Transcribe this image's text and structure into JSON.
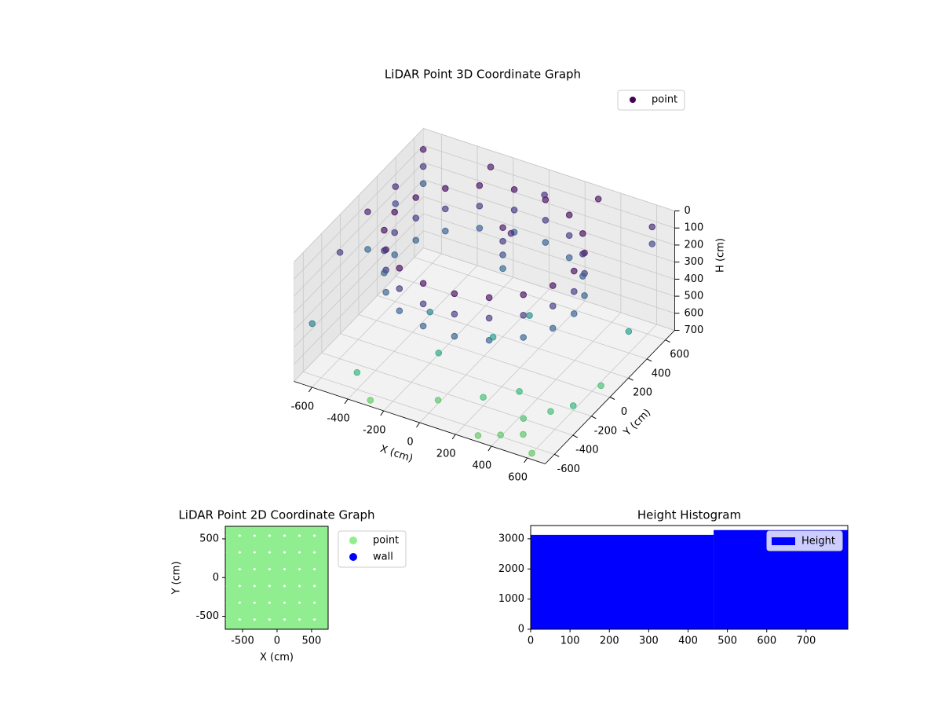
{
  "chart_data": [
    {
      "type": "scatter3d",
      "title": "LiDAR Point 3D Coordinate Graph",
      "xlabel": "X (cm)",
      "ylabel": "Y (cm)",
      "zlabel": "H (cm)",
      "xlim": [
        -700,
        700
      ],
      "ylim": [
        -700,
        700
      ],
      "zlim": [
        0,
        700
      ],
      "z_inverted": true,
      "xticks": [
        -600,
        -400,
        -200,
        0,
        200,
        400,
        600
      ],
      "yticks": [
        -600,
        -400,
        -200,
        0,
        200,
        400,
        600
      ],
      "zticks": [
        0,
        100,
        200,
        300,
        400,
        500,
        600,
        700
      ],
      "colormap": "viridis",
      "grid": true,
      "legend": "upper right",
      "series": [
        {
          "name": "point",
          "color": "#440154",
          "x": [
            500,
            470,
            383,
            250,
            87,
            -87,
            -250,
            -383,
            -470,
            -500,
            -470,
            -383,
            -250,
            -87,
            87,
            250,
            383,
            470,
            500,
            470,
            383,
            250,
            87,
            -87,
            -250,
            -383,
            -470,
            -500,
            -470,
            -383,
            -250,
            -87,
            87,
            250,
            383,
            470,
            500,
            470,
            383,
            250,
            87,
            -87,
            -250,
            -383,
            -470,
            -500,
            -470,
            -383,
            -250,
            -87,
            87,
            250,
            383,
            470,
            -650,
            -650,
            -650,
            -650,
            -650,
            -650,
            -650,
            -650,
            -650,
            -300,
            0,
            300,
            600,
            600,
            650,
            650,
            650,
            300,
            400,
            500,
            600,
            200,
            350,
            450,
            550,
            0,
            0,
            0,
            0,
            30,
            -200,
            100,
            -400,
            200,
            -100,
            0,
            -300
          ],
          "y": [
            0,
            171,
            321,
            433,
            492,
            492,
            433,
            321,
            171,
            0,
            -171,
            -321,
            -433,
            -492,
            -492,
            -433,
            -321,
            -171,
            0,
            171,
            321,
            433,
            492,
            492,
            433,
            321,
            171,
            0,
            -171,
            -321,
            -433,
            -492,
            -492,
            -433,
            -321,
            -171,
            0,
            171,
            321,
            433,
            492,
            492,
            433,
            321,
            171,
            0,
            -171,
            -321,
            -433,
            -492,
            -492,
            -433,
            -321,
            -171,
            600,
            600,
            600,
            300,
            300,
            0,
            0,
            -300,
            -600,
            650,
            650,
            650,
            650,
            650,
            300,
            0,
            -300,
            -650,
            -600,
            -550,
            -650,
            -400,
            -300,
            -450,
            -350,
            200,
            200,
            200,
            200,
            230,
            -200,
            -100,
            -600,
            100,
            -300,
            -500,
            -650
          ],
          "z": [
            30,
            30,
            30,
            30,
            30,
            30,
            30,
            30,
            30,
            30,
            30,
            30,
            30,
            30,
            30,
            30,
            30,
            30,
            150,
            150,
            150,
            150,
            150,
            150,
            150,
            150,
            150,
            150,
            150,
            150,
            150,
            150,
            150,
            150,
            150,
            150,
            280,
            280,
            280,
            280,
            280,
            280,
            280,
            280,
            280,
            280,
            280,
            280,
            280,
            280,
            280,
            280,
            280,
            280,
            50,
            150,
            250,
            100,
            200,
            80,
            300,
            150,
            400,
            60,
            120,
            40,
            200,
            100,
            500,
            650,
            600,
            700,
            690,
            680,
            700,
            650,
            620,
            660,
            640,
            60,
            140,
            220,
            300,
            100,
            400,
            500,
            600,
            450,
            550,
            680,
            700
          ]
        }
      ]
    },
    {
      "type": "scatter",
      "title": "LiDAR Point 2D Coordinate Graph",
      "xlabel": "X (cm)",
      "ylabel": "Y (cm)",
      "xlim": [
        -750,
        740
      ],
      "ylim": [
        -667,
        662
      ],
      "xticks": [
        -500,
        0,
        500
      ],
      "yticks": [
        -500,
        0,
        500
      ],
      "legend": "outside right",
      "series": [
        {
          "name": "point",
          "color": "#90ee90",
          "x": [
            -650,
            -433,
            -217,
            0,
            217,
            433,
            650,
            -650,
            -433,
            -217,
            0,
            217,
            433,
            650,
            -650,
            -433,
            -217,
            0,
            217,
            433,
            650,
            -650,
            -433,
            -217,
            0,
            217,
            433,
            650,
            -650,
            -433,
            -217,
            0,
            217,
            433,
            650,
            -650,
            -433,
            -217,
            0,
            217,
            433,
            650,
            -650,
            -433,
            -217,
            0,
            217,
            433,
            650
          ],
          "y": [
            -650,
            -650,
            -650,
            -650,
            -650,
            -650,
            -650,
            -433,
            -433,
            -433,
            -433,
            -433,
            -433,
            -433,
            -217,
            -217,
            -217,
            -217,
            -217,
            -217,
            -217,
            0,
            0,
            0,
            0,
            0,
            0,
            0,
            217,
            217,
            217,
            217,
            217,
            217,
            217,
            433,
            433,
            433,
            433,
            433,
            433,
            433,
            650,
            650,
            650,
            650,
            650,
            650,
            650
          ]
        },
        {
          "name": "wall",
          "color": "#0000ff",
          "x": [],
          "y": []
        }
      ]
    },
    {
      "type": "histogram",
      "title": "Height Histogram",
      "name": "Height",
      "color": "#0000ff",
      "bins": [
        0,
        465,
        806
      ],
      "counts": [
        3130,
        3290
      ],
      "xlim": [
        0,
        806
      ],
      "ylim": [
        0,
        3440
      ],
      "xticks": [
        0,
        100,
        200,
        300,
        400,
        500,
        600,
        700
      ],
      "yticks": [
        0,
        1000,
        2000,
        3000
      ],
      "legend": "upper right"
    }
  ]
}
